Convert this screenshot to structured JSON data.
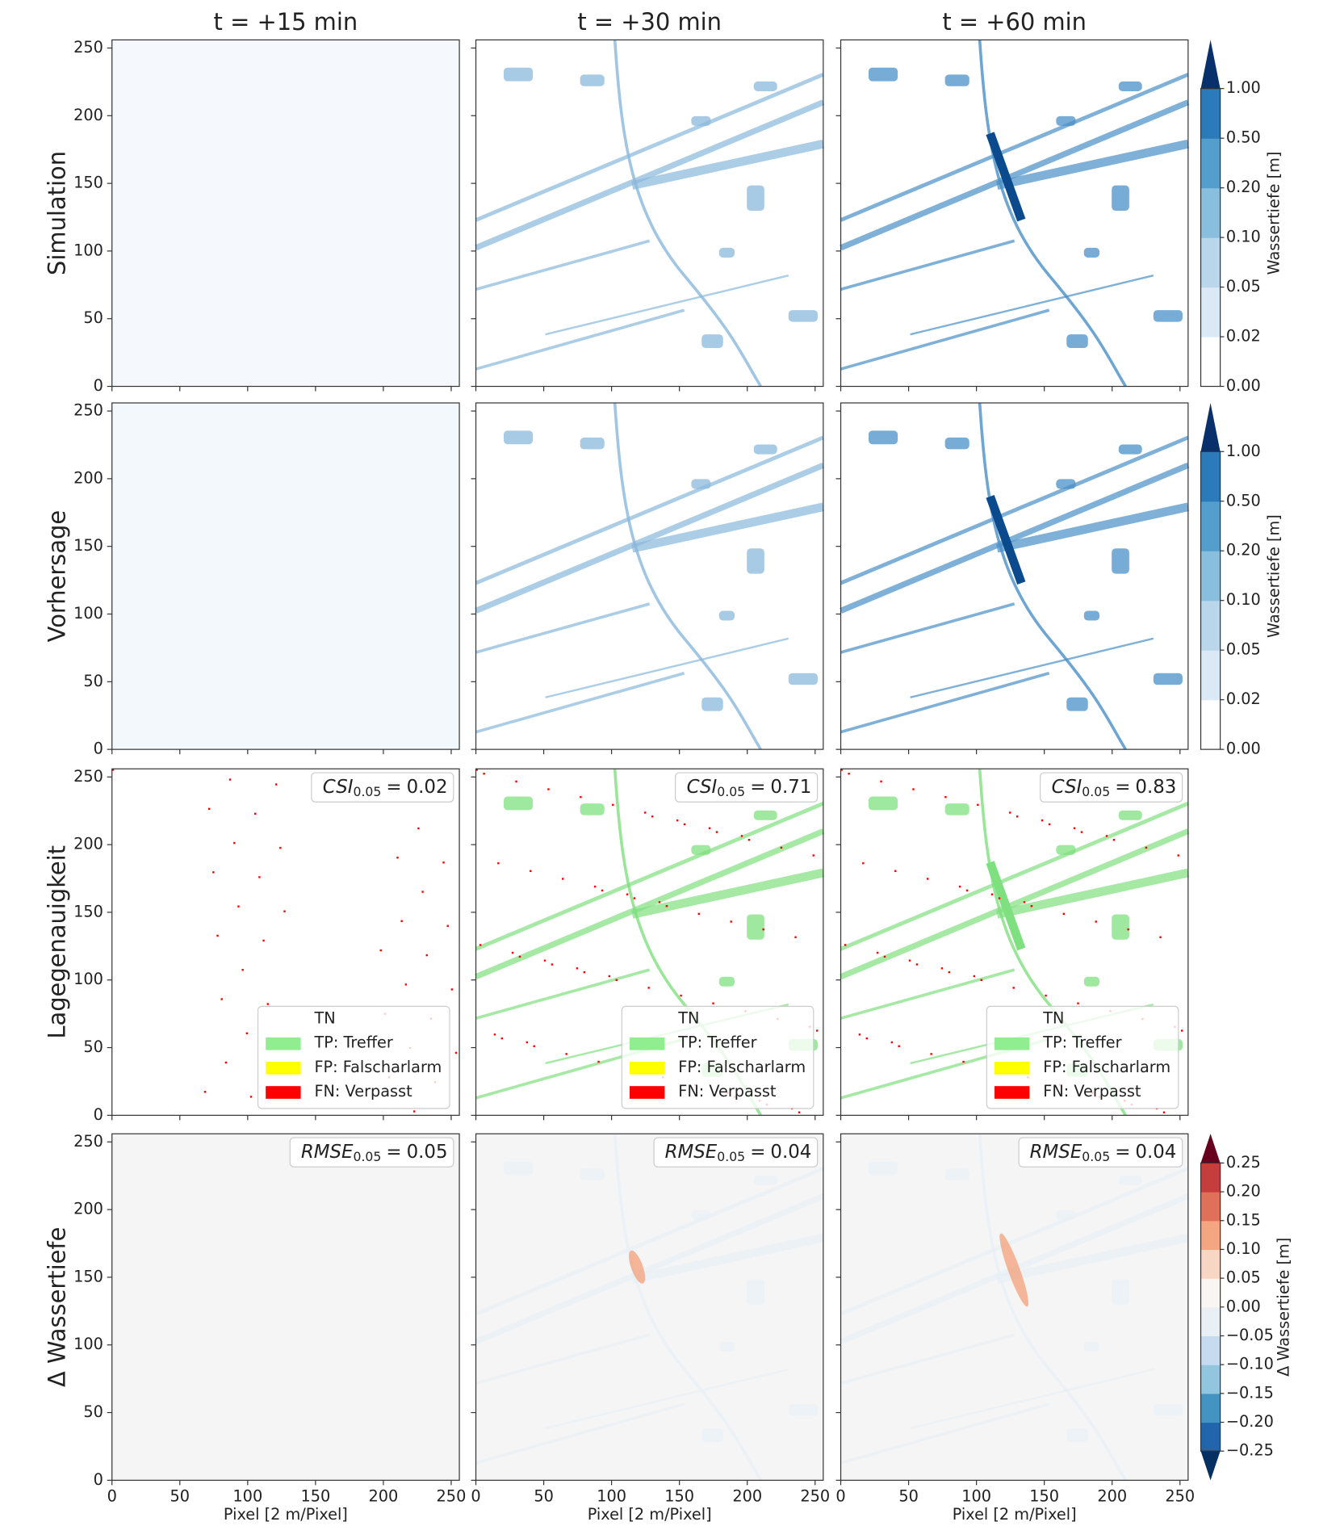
{
  "chart_data": {
    "type": "heatmap",
    "columns": [
      "t = +15 min",
      "t = +30 min",
      "t = +60 min"
    ],
    "rows": [
      "Simulation",
      "Vorhersage",
      "Lagegenauigkeit",
      "Δ Wassertiefe"
    ],
    "xlabel": "Pixel [2 m/Pixel]",
    "xlim": [
      0,
      256
    ],
    "ylim": [
      0,
      256
    ],
    "xticks": [
      0,
      50,
      100,
      150,
      200,
      250
    ],
    "yticks": [
      0,
      50,
      100,
      150,
      200,
      250
    ],
    "depth_colorbar": {
      "label": "Wassertiefe [m]",
      "ticks": [
        {
          "value": 0,
          "label": "0.00"
        },
        {
          "value": 0.02,
          "label": "0.02"
        },
        {
          "value": 0.05,
          "label": "0.05"
        },
        {
          "value": 0.1,
          "label": "0.10"
        },
        {
          "value": 0.2,
          "label": "0.20"
        },
        {
          "value": 0.5,
          "label": "0.50"
        },
        {
          "value": 1,
          "label": "1.00"
        }
      ],
      "colors": [
        "#ffffff",
        "#dbe9f6",
        "#bad6eb",
        "#89bedc",
        "#539ecd",
        "#2b7bba"
      ],
      "extend_high_color": "#08306b"
    },
    "diff_colorbar": {
      "label": "Δ Wassertiefe [m]",
      "ticks": [
        {
          "value": -0.25,
          "label": "−0.25"
        },
        {
          "value": -0.2,
          "label": "−0.20"
        },
        {
          "value": -0.15,
          "label": "−0.15"
        },
        {
          "value": -0.1,
          "label": "−0.10"
        },
        {
          "value": -0.05,
          "label": "−0.05"
        },
        {
          "value": 0,
          "label": "0.00"
        },
        {
          "value": 0.05,
          "label": "0.05"
        },
        {
          "value": 0.1,
          "label": "0.10"
        },
        {
          "value": 0.15,
          "label": "0.15"
        },
        {
          "value": 0.2,
          "label": "0.20"
        },
        {
          "value": 0.25,
          "label": "0.25"
        }
      ],
      "colors": [
        "#2166ac",
        "#4393c3",
        "#92c5de",
        "#c6dbef",
        "#e8f0f6",
        "#f9f5f2",
        "#f7d6c4",
        "#f4a582",
        "#e0705a",
        "#c53e3d"
      ],
      "extend_low_color": "#053061",
      "extend_high_color": "#67001f"
    },
    "legend": [
      {
        "name": "TN",
        "color": "#ffffff"
      },
      {
        "name": "TP: Treffer",
        "color": "#90ee90"
      },
      {
        "name": "FP: Falscharlarm",
        "color": "#ffff00"
      },
      {
        "name": "FN: Verpasst",
        "color": "#ff0000"
      }
    ],
    "csi": [
      {
        "metric": "CSI",
        "subscript": "0.05",
        "sep": "=",
        "value": 0.02
      },
      {
        "metric": "CSI",
        "subscript": "0.05",
        "sep": "=",
        "value": 0.71
      },
      {
        "metric": "CSI",
        "subscript": "0.05",
        "sep": "=",
        "value": 0.83
      }
    ],
    "rmse": [
      {
        "metric": "RMSE",
        "subscript": "0.05",
        "sep": "=",
        "value": 0.05
      },
      {
        "metric": "RMSE",
        "subscript": "0.05",
        "sep": "=",
        "value": 0.04
      },
      {
        "metric": "RMSE",
        "subscript": "0.05",
        "sep": "=",
        "value": 0.04
      }
    ]
  }
}
